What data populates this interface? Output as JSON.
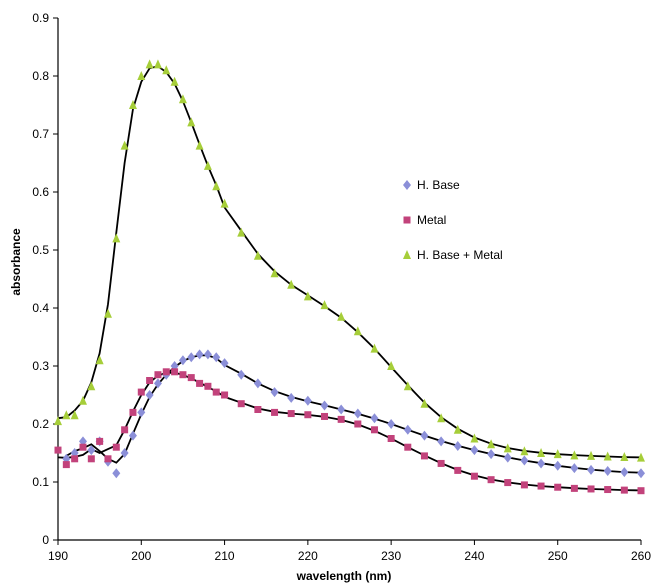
{
  "chart_data": {
    "type": "scatter",
    "xlabel": "wavelength (nm)",
    "ylabel": "absorbance",
    "xlim": [
      190,
      260
    ],
    "ylim": [
      0,
      0.9
    ],
    "xticks": [
      "190",
      "200",
      "210",
      "220",
      "230",
      "240",
      "250",
      "260"
    ],
    "yticks": [
      "0",
      "0.1",
      "0.2",
      "0.3",
      "0.4",
      "0.5",
      "0.6",
      "0.7",
      "0.8",
      "0.9"
    ],
    "grid": false,
    "legend_position": "right",
    "series": [
      {
        "name": "H. Base",
        "marker": "diamond",
        "color": "#8B8FD8",
        "x": [
          191,
          192,
          193,
          194,
          195,
          196,
          197,
          198,
          199,
          200,
          201,
          202,
          203,
          204,
          205,
          206,
          207,
          208,
          209,
          210,
          212,
          214,
          216,
          218,
          220,
          222,
          224,
          226,
          228,
          230,
          232,
          234,
          236,
          238,
          240,
          242,
          244,
          246,
          248,
          250,
          252,
          254,
          256,
          258,
          260
        ],
        "y": [
          0.14,
          0.15,
          0.17,
          0.155,
          0.17,
          0.135,
          0.115,
          0.15,
          0.18,
          0.22,
          0.25,
          0.27,
          0.285,
          0.3,
          0.31,
          0.315,
          0.32,
          0.32,
          0.315,
          0.305,
          0.285,
          0.27,
          0.255,
          0.245,
          0.24,
          0.232,
          0.225,
          0.218,
          0.21,
          0.2,
          0.19,
          0.18,
          0.17,
          0.162,
          0.155,
          0.148,
          0.142,
          0.137,
          0.132,
          0.128,
          0.124,
          0.121,
          0.119,
          0.117,
          0.115
        ]
      },
      {
        "name": "Metal",
        "marker": "square",
        "color": "#C2427B",
        "x": [
          190,
          191,
          192,
          193,
          194,
          195,
          196,
          197,
          198,
          199,
          200,
          201,
          202,
          203,
          204,
          205,
          206,
          207,
          208,
          209,
          210,
          212,
          214,
          216,
          218,
          220,
          222,
          224,
          226,
          228,
          230,
          232,
          234,
          236,
          238,
          240,
          242,
          244,
          246,
          248,
          250,
          252,
          254,
          256,
          258,
          260
        ],
        "y": [
          0.155,
          0.13,
          0.14,
          0.16,
          0.14,
          0.17,
          0.14,
          0.16,
          0.19,
          0.22,
          0.255,
          0.275,
          0.285,
          0.29,
          0.29,
          0.285,
          0.28,
          0.27,
          0.265,
          0.255,
          0.25,
          0.235,
          0.225,
          0.22,
          0.218,
          0.216,
          0.213,
          0.208,
          0.2,
          0.19,
          0.175,
          0.16,
          0.145,
          0.132,
          0.12,
          0.11,
          0.104,
          0.099,
          0.095,
          0.093,
          0.091,
          0.089,
          0.088,
          0.087,
          0.086,
          0.085
        ]
      },
      {
        "name": "H. Base + Metal",
        "marker": "triangle",
        "color": "#A6CE39",
        "x": [
          190,
          191,
          192,
          193,
          194,
          195,
          196,
          197,
          198,
          199,
          200,
          201,
          202,
          203,
          204,
          205,
          206,
          207,
          208,
          209,
          210,
          212,
          214,
          216,
          218,
          220,
          222,
          224,
          226,
          228,
          230,
          232,
          234,
          236,
          238,
          240,
          242,
          244,
          246,
          248,
          250,
          252,
          254,
          256,
          258,
          260
        ],
        "y": [
          0.205,
          0.215,
          0.215,
          0.24,
          0.265,
          0.31,
          0.39,
          0.52,
          0.68,
          0.75,
          0.8,
          0.82,
          0.82,
          0.81,
          0.79,
          0.76,
          0.72,
          0.68,
          0.645,
          0.61,
          0.58,
          0.53,
          0.49,
          0.46,
          0.44,
          0.42,
          0.405,
          0.385,
          0.36,
          0.33,
          0.3,
          0.265,
          0.235,
          0.21,
          0.19,
          0.175,
          0.165,
          0.158,
          0.153,
          0.15,
          0.148,
          0.146,
          0.145,
          0.144,
          0.143,
          0.142
        ]
      }
    ],
    "fit_color": "#000000"
  }
}
